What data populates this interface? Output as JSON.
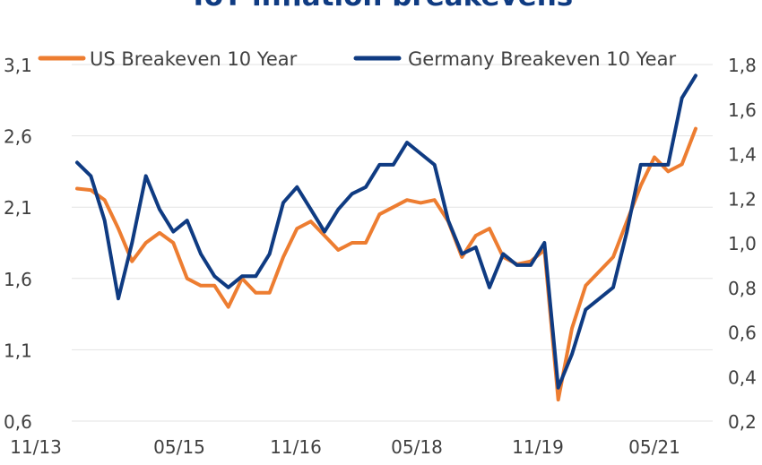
{
  "chart_data": {
    "type": "line",
    "title": "ToT inflation breakevens",
    "colors": {
      "us": "#ed7d31",
      "de": "#0f3b82",
      "grid": "#e3e3e3",
      "title": "#0f3b82"
    },
    "x_ticks": [
      "11/13",
      "05/15",
      "11/16",
      "05/18",
      "11/19",
      "05/21"
    ],
    "y_left": {
      "min": 0.6,
      "max": 3.1,
      "ticks": [
        "0,6",
        "1,1",
        "1,6",
        "2,1",
        "2,6",
        "3,1"
      ]
    },
    "y_right": {
      "min": 0.2,
      "max": 1.8,
      "ticks": [
        "0,2",
        "0,4",
        "0,6",
        "0,8",
        "1,0",
        "1,2",
        "1,4",
        "1,6",
        "1,8"
      ]
    },
    "legend_position": "top",
    "grid": true,
    "series": [
      {
        "name": "US Breakeven 10 Year",
        "axis": "left",
        "color": "#ed7d31",
        "x": [
          "05/14",
          "07/14",
          "09/14",
          "11/14",
          "01/15",
          "03/15",
          "05/15",
          "07/15",
          "09/15",
          "11/15",
          "01/16",
          "03/16",
          "05/16",
          "07/16",
          "09/16",
          "11/16",
          "01/17",
          "03/17",
          "05/17",
          "07/17",
          "09/17",
          "11/17",
          "01/18",
          "03/18",
          "05/18",
          "07/18",
          "09/18",
          "11/18",
          "01/19",
          "03/19",
          "05/19",
          "07/19",
          "09/19",
          "11/19",
          "01/20",
          "03/20",
          "05/20",
          "07/20",
          "09/20",
          "11/20",
          "01/21",
          "03/21",
          "05/21",
          "07/21",
          "09/21",
          "11/21"
        ],
        "values": [
          2.23,
          2.22,
          2.15,
          1.95,
          1.72,
          1.85,
          1.92,
          1.85,
          1.6,
          1.55,
          1.55,
          1.4,
          1.6,
          1.5,
          1.5,
          1.75,
          1.95,
          2.0,
          1.9,
          1.8,
          1.85,
          1.85,
          2.05,
          2.1,
          2.15,
          2.13,
          2.15,
          2.0,
          1.75,
          1.9,
          1.95,
          1.75,
          1.7,
          1.72,
          1.8,
          0.75,
          1.25,
          1.55,
          1.65,
          1.75,
          2.0,
          2.25,
          2.45,
          2.35,
          2.4,
          2.65
        ]
      },
      {
        "name": "Germany Breakeven 10 Year",
        "axis": "right",
        "color": "#0f3b82",
        "x": [
          "05/14",
          "07/14",
          "09/14",
          "11/14",
          "01/15",
          "03/15",
          "05/15",
          "07/15",
          "09/15",
          "11/15",
          "01/16",
          "03/16",
          "05/16",
          "07/16",
          "09/16",
          "11/16",
          "01/17",
          "03/17",
          "05/17",
          "07/17",
          "09/17",
          "11/17",
          "01/18",
          "03/18",
          "05/18",
          "07/18",
          "09/18",
          "11/18",
          "01/19",
          "03/19",
          "05/19",
          "07/19",
          "09/19",
          "11/19",
          "01/20",
          "03/20",
          "05/20",
          "07/20",
          "09/20",
          "11/20",
          "01/21",
          "03/21",
          "05/21",
          "07/21",
          "09/21",
          "11/21"
        ],
        "values": [
          1.36,
          1.3,
          1.1,
          0.75,
          1.0,
          1.3,
          1.15,
          1.05,
          1.1,
          0.95,
          0.85,
          0.8,
          0.85,
          0.85,
          0.95,
          1.18,
          1.25,
          1.15,
          1.05,
          1.15,
          1.22,
          1.25,
          1.35,
          1.35,
          1.45,
          1.4,
          1.35,
          1.1,
          0.95,
          0.98,
          0.8,
          0.95,
          0.9,
          0.9,
          1.0,
          0.35,
          0.5,
          0.7,
          0.75,
          0.8,
          1.05,
          1.35,
          1.35,
          1.35,
          1.65,
          1.75
        ]
      }
    ]
  }
}
